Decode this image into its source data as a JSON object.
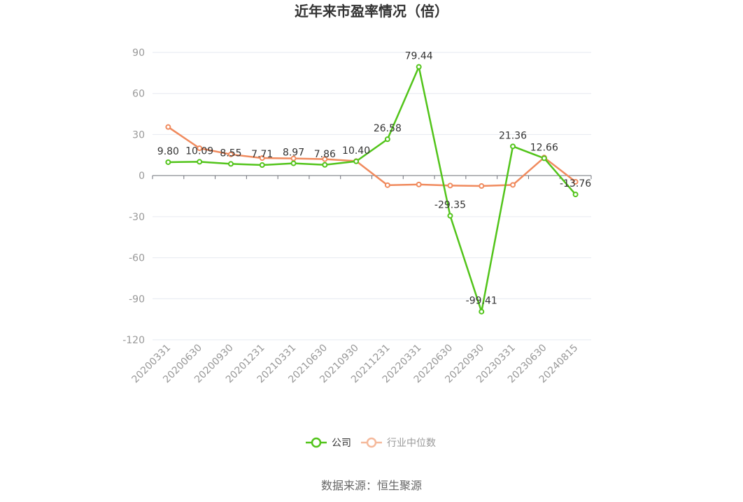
{
  "chart_data": {
    "type": "line",
    "title": "近年来市盈率情况（倍）",
    "categories": [
      "20200331",
      "20200630",
      "20200930",
      "20201231",
      "20210331",
      "20210630",
      "20210930",
      "20211231",
      "20220331",
      "20220630",
      "20220930",
      "20230331",
      "20230630",
      "20240815"
    ],
    "series": [
      {
        "name": "公司",
        "color": "#52c41a",
        "values": [
          9.8,
          10.09,
          8.55,
          7.71,
          8.97,
          7.86,
          10.4,
          26.58,
          79.44,
          -29.35,
          -99.41,
          21.36,
          12.66,
          -13.76
        ],
        "labels": [
          "9.80",
          "10.09",
          "8.55",
          "7.71",
          "8.97",
          "7.86",
          "10.40",
          "26.58",
          "79.44",
          "-29.35",
          "-99.41",
          "21.36",
          "12.66",
          "-13.76"
        ]
      },
      {
        "name": "行业中位数",
        "color": "#f08a5d",
        "values": [
          35.5,
          20.0,
          15.5,
          12.8,
          12.5,
          12.0,
          10.6,
          -7.0,
          -6.5,
          -7.3,
          -7.6,
          -6.8,
          13.2,
          -4.5
        ]
      }
    ],
    "yticks": [
      "90",
      "60",
      "30",
      "0",
      "-30",
      "-60",
      "-90",
      "-120"
    ],
    "ylim": [
      -120,
      90
    ],
    "legend_position": "bottom",
    "source": "数据来源：恒生聚源"
  }
}
